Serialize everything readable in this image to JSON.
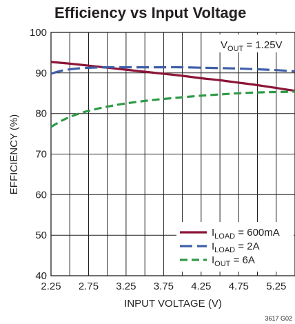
{
  "chart_data": {
    "type": "line",
    "title": "Efficiency vs Input Voltage",
    "xlabel": "INPUT VOLTAGE (V)",
    "ylabel": "EFFICIENCY (%)",
    "xlim": [
      2.25,
      5.5
    ],
    "ylim": [
      40,
      100
    ],
    "xticks": [
      2.25,
      2.75,
      3.25,
      3.75,
      4.25,
      4.75,
      5.25
    ],
    "xtick_labels": [
      "2.25",
      "2.75",
      "3.25",
      "3.75",
      "4.25",
      "4.75",
      "5.25"
    ],
    "yticks": [
      40,
      50,
      60,
      70,
      80,
      90,
      100
    ],
    "ytick_labels": [
      "40",
      "50",
      "60",
      "70",
      "80",
      "90",
      "100"
    ],
    "grid": true,
    "annotation": {
      "main": "V",
      "sub": "OUT",
      "rest": " = 1.25V"
    },
    "footnote": "3617 G02",
    "legend_position": "bottom-right",
    "series": [
      {
        "name": "I_LOAD = 600mA",
        "label_main": "I",
        "label_sub": "LOAD",
        "label_rest": " = 600mA",
        "color": "#8b1538",
        "dash": "solid",
        "x": [
          2.25,
          2.5,
          2.75,
          3.0,
          3.25,
          3.5,
          3.75,
          4.0,
          4.25,
          4.5,
          4.75,
          5.0,
          5.25,
          5.5
        ],
        "y": [
          92.7,
          92.3,
          91.8,
          91.3,
          90.8,
          90.3,
          89.8,
          89.3,
          88.7,
          88.2,
          87.6,
          87.0,
          86.3,
          85.6
        ]
      },
      {
        "name": "I_LOAD = 2A",
        "label_main": "I",
        "label_sub": "LOAD",
        "label_rest": " = 2A",
        "color": "#3f5fa8",
        "dash": "long-dash",
        "x": [
          2.25,
          2.4,
          2.6,
          2.8,
          3.0,
          3.25,
          3.5,
          3.75,
          4.0,
          4.25,
          4.5,
          4.75,
          5.0,
          5.25,
          5.5
        ],
        "y": [
          89.8,
          90.6,
          91.1,
          91.3,
          91.4,
          91.4,
          91.4,
          91.4,
          91.4,
          91.3,
          91.2,
          91.1,
          90.9,
          90.7,
          90.4
        ]
      },
      {
        "name": "I_OUT = 6A",
        "label_main": "I",
        "label_sub": "OUT",
        "label_rest": " = 6A",
        "color": "#2e9a47",
        "dash": "dash",
        "x": [
          2.25,
          2.4,
          2.55,
          2.7,
          2.85,
          3.0,
          3.25,
          3.5,
          3.75,
          4.0,
          4.25,
          4.5,
          4.75,
          5.0,
          5.25,
          5.5
        ],
        "y": [
          76.7,
          78.3,
          79.5,
          80.4,
          81.1,
          81.7,
          82.5,
          83.1,
          83.6,
          84.0,
          84.4,
          84.7,
          85.0,
          85.2,
          85.3,
          85.4
        ]
      }
    ]
  }
}
